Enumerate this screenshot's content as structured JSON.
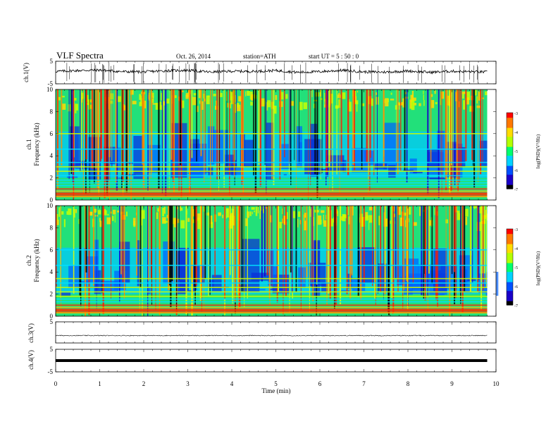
{
  "header": {
    "title": "VLF  Spectra",
    "date": "Oct. 26, 2014",
    "station": "station=ATH",
    "start": "start  UT  =   5  : 50 : 0"
  },
  "chart_data": [
    {
      "type": "line",
      "panel": "ch1-waveform",
      "ylabel": "ch.1(V)",
      "ylim": [
        -5,
        5
      ],
      "yticks": [
        "5",
        "-5"
      ],
      "x": [
        0,
        0.5,
        1,
        1.5,
        2,
        2.5,
        3,
        3.5,
        4,
        4.5,
        5,
        5.5,
        6,
        6.5,
        7,
        7.5,
        8,
        8.5,
        9,
        9.8
      ],
      "values": [
        0.5,
        0.9,
        1.1,
        0.4,
        0.3,
        0.8,
        1.0,
        0.2,
        0.6,
        0.5,
        0.9,
        0.1,
        0.4,
        1.0,
        0.3,
        0.2,
        0.7,
        0.1,
        0.6,
        0.2
      ]
    },
    {
      "type": "heatmap",
      "panel": "ch1-spectrogram",
      "ylabel": "ch.1",
      "ylabel2": "Frequency  (kHz)",
      "ylim": [
        0,
        10
      ],
      "yticks": [
        "0",
        "2",
        "4",
        "6",
        "8",
        "10"
      ],
      "colorbar": {
        "label": "log(PSD)(V²/Hz)",
        "range": [
          -7,
          -3
        ],
        "ticks": [
          "-3",
          "-4",
          "-5",
          "-6",
          "-7"
        ]
      }
    },
    {
      "type": "heatmap",
      "panel": "ch2-spectrogram",
      "ylabel": "ch.2",
      "ylabel2": "Frequency  (kHz)",
      "ylim": [
        0,
        10
      ],
      "yticks": [
        "0",
        "2",
        "4",
        "6",
        "8",
        "10"
      ],
      "colorbar": {
        "label": "log(PSD)(V²/Hz)",
        "range": [
          -7,
          -3
        ],
        "ticks": [
          "-3",
          "-4",
          "-5",
          "-6",
          "-7"
        ]
      }
    },
    {
      "type": "line",
      "panel": "ch3-waveform",
      "ylabel": "ch.3(V)",
      "ylim": [
        -5,
        5
      ],
      "yticks": [
        "5"
      ],
      "x": [
        0,
        9.8
      ],
      "values": [
        -1.5,
        -1.5
      ]
    },
    {
      "type": "line",
      "panel": "ch4-waveform",
      "ylabel": "ch.4(V)",
      "ylim": [
        -5,
        5
      ],
      "yticks": [
        "5",
        "-5"
      ],
      "x": [
        0,
        9.8
      ],
      "values": [
        0,
        0
      ]
    }
  ],
  "xaxis": {
    "label": "Time  (min)",
    "range": [
      0,
      10
    ],
    "data_end": 9.8,
    "ticks": [
      "0",
      "1",
      "2",
      "3",
      "4",
      "5",
      "6",
      "7",
      "8",
      "9",
      "10"
    ]
  },
  "colors": {
    "colormap": [
      "#000000",
      "#1a00c8",
      "#0050ff",
      "#00d2ff",
      "#00ff6e",
      "#b4ff00",
      "#ffdc00",
      "#ff7800",
      "#ff0000"
    ]
  }
}
